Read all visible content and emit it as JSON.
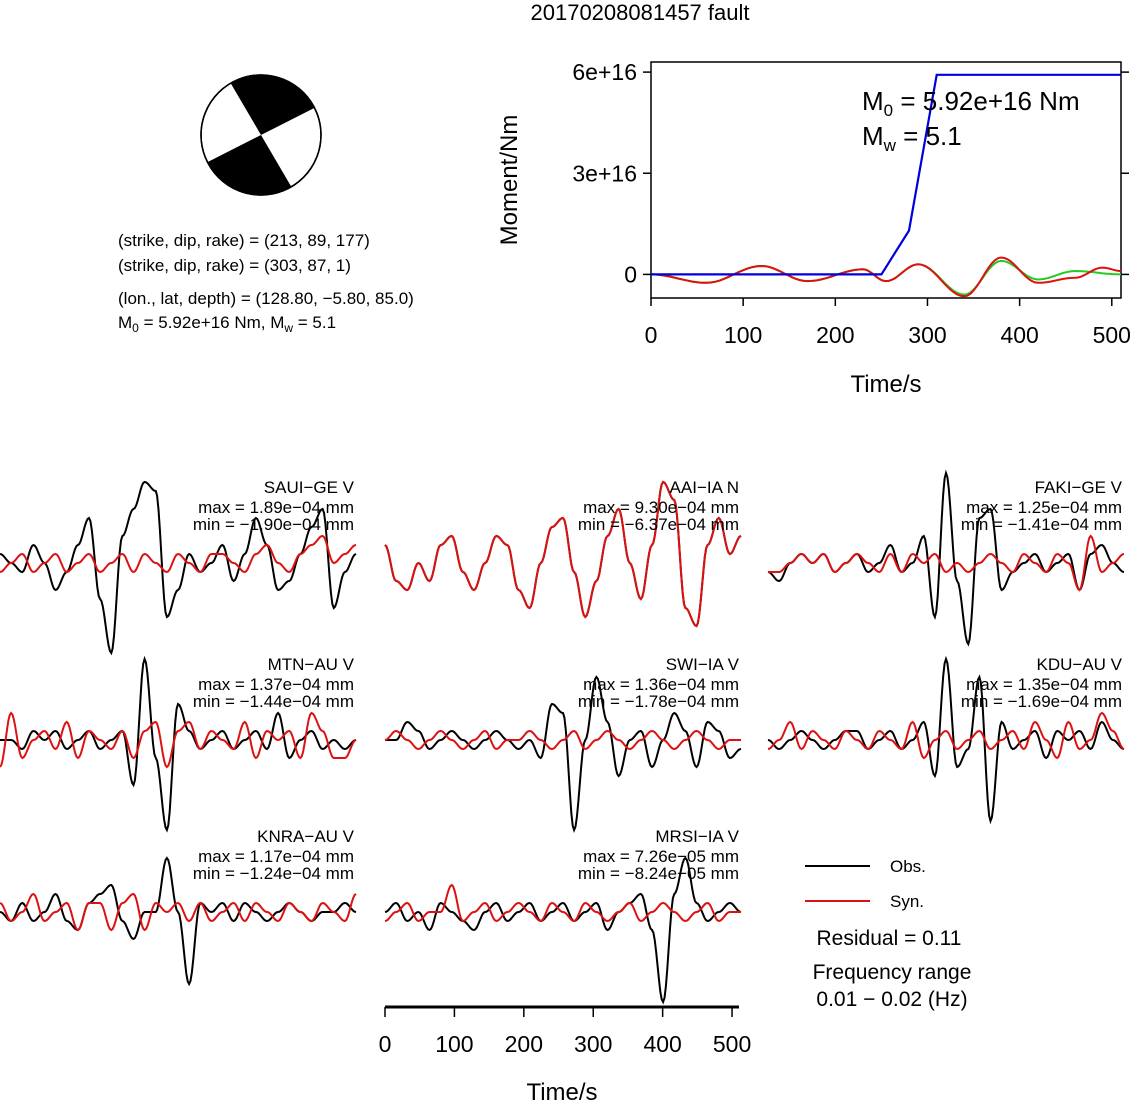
{
  "page": {
    "title": "20170208081457 fault",
    "strike_line_1": "(strike, dip, rake) = (213, 89, 177)",
    "strike_line_2": "(strike, dip, rake) = (303, 87, 1)",
    "location_line": "(lon., lat, depth) = (128.80, −5.80, 85.0)",
    "moment_line_m0": "M",
    "moment_line_m0_sub": "0",
    "moment_line_m0_rest": " = 5.92e+16 Nm, M",
    "moment_line_mw_sub": "w",
    "moment_line_mw_rest": " = 5.1"
  },
  "colors": {
    "observed": "#000000",
    "synthetic": "#dd1111",
    "moment": "#0000dd",
    "moment_obs": "#22cc22",
    "beachball_fill": "#000000"
  },
  "legend": {
    "obs_label": "Obs.",
    "syn_label": "Syn.",
    "residual": "Residual = 0.11",
    "freq_title": "Frequency range",
    "freq_value": "0.01 − 0.02 (Hz)"
  },
  "chart_data": [
    {
      "type": "line",
      "title": "",
      "xlabel": "Time/s",
      "ylabel": "Moment/Nm",
      "xlim": [
        0,
        510
      ],
      "ylim": [
        -7000000000000000.0,
        6.3e+16
      ],
      "x_ticks": [
        0,
        100,
        200,
        300,
        400,
        500
      ],
      "y_ticks": [
        0,
        3e+16,
        6e+16
      ],
      "y_tick_labels": [
        "0",
        "3e+16",
        "6e+16"
      ],
      "annotation_m0": "M",
      "annotation_m0_sub": "0",
      "annotation_m0_rest": " = 5.92e+16 Nm",
      "annotation_mw": "M",
      "annotation_mw_sub": "w",
      "annotation_mw_rest": " = 5.1",
      "moment_function": {
        "x": [
          0,
          250,
          280,
          310,
          510
        ],
        "y": [
          0,
          0,
          1.3e+16,
          5.92e+16,
          5.92e+16
        ]
      },
      "waveform_green": {
        "x": [
          0,
          60,
          120,
          170,
          230,
          255,
          290,
          340,
          380,
          420,
          460,
          510
        ],
        "y": [
          0,
          -2500000000000000.0,
          2500000000000000.0,
          -2000000000000000.0,
          1500000000000000.0,
          -2000000000000000.0,
          3000000000000000.0,
          -6000000000000000.0,
          4000000000000000.0,
          -1500000000000000.0,
          1000000000000000.0,
          0
        ]
      },
      "waveform_red": {
        "x": [
          0,
          60,
          120,
          170,
          230,
          255,
          290,
          340,
          380,
          420,
          460,
          490,
          510
        ],
        "y": [
          0,
          -2500000000000000.0,
          2500000000000000.0,
          -2000000000000000.0,
          1500000000000000.0,
          -2000000000000000.0,
          3000000000000000.0,
          -6500000000000000.0,
          5000000000000000.0,
          -2500000000000000.0,
          -1000000000000000.0,
          2000000000000000.0,
          1000000000000000.0
        ]
      }
    },
    {
      "type": "line",
      "title": "",
      "xlabel": "Time/s",
      "xlim": [
        0,
        510
      ],
      "x_ticks": [
        0,
        100,
        200,
        300,
        400,
        500
      ],
      "stations": [
        {
          "name": "SAUI−GE V",
          "max": "max = 1.89e−04 mm",
          "min": "min = −1.90e−04 mm",
          "col": 0,
          "row": 0,
          "obs": [
            0.1,
            0.0,
            -0.1,
            0.2,
            0.0,
            -0.3,
            -0.1,
            0.2,
            0.5,
            -0.4,
            -1.0,
            0.3,
            0.6,
            0.9,
            0.8,
            -0.6,
            -0.3,
            0.1,
            -0.1,
            0.0,
            0.2,
            -0.2,
            0.1,
            0.5,
            0.2,
            -0.3,
            -0.2,
            0.1,
            0.4,
            0.6,
            -0.5,
            -0.1,
            0.1
          ],
          "syn": [
            -0.1,
            0.0,
            0.1,
            -0.1,
            0.0,
            0.1,
            -0.1,
            0.0,
            0.1,
            -0.1,
            0.0,
            0.1,
            -0.1,
            0.1,
            0.0,
            -0.1,
            0.1,
            0.0,
            -0.1,
            0.1,
            0.1,
            0.0,
            -0.1,
            0.1,
            0.2,
            0.0,
            -0.1,
            0.1,
            0.2,
            0.3,
            0.0,
            0.1,
            0.2
          ]
        },
        {
          "name": "AAI−IA N",
          "max": "max = 9.30e−04 mm",
          "min": "min = −6.37e−04 mm",
          "col": 1,
          "row": 0,
          "obs": [
            0.2,
            -0.2,
            -0.3,
            0.0,
            -0.2,
            0.2,
            0.3,
            -0.1,
            -0.3,
            0.0,
            0.3,
            0.2,
            -0.3,
            -0.5,
            0.0,
            0.4,
            0.5,
            -0.1,
            -0.6,
            -0.2,
            0.3,
            0.6,
            0.0,
            -0.4,
            0.2,
            0.9,
            0.7,
            -0.5,
            -0.7,
            0.2,
            0.5,
            0.1,
            0.3
          ],
          "syn": [
            0.2,
            -0.2,
            -0.3,
            0.0,
            -0.2,
            0.2,
            0.3,
            -0.1,
            -0.3,
            0.0,
            0.3,
            0.2,
            -0.3,
            -0.5,
            0.0,
            0.4,
            0.5,
            -0.1,
            -0.6,
            -0.2,
            0.3,
            0.6,
            0.0,
            -0.4,
            0.2,
            0.9,
            0.7,
            -0.5,
            -0.7,
            0.2,
            0.5,
            0.1,
            0.3
          ]
        },
        {
          "name": "FAKI−GE V",
          "max": "max = 1.25e−04 mm",
          "min": "min = −1.41e−04 mm",
          "col": 2,
          "row": 0,
          "obs": [
            -0.1,
            -0.2,
            0.0,
            0.1,
            0.0,
            0.1,
            -0.1,
            0.0,
            0.1,
            -0.1,
            0.0,
            0.2,
            -0.1,
            0.0,
            0.3,
            -0.6,
            1.0,
            -0.2,
            -0.9,
            0.5,
            0.6,
            -0.3,
            -0.1,
            0.0,
            0.1,
            -0.1,
            0.0,
            0.1,
            -0.3,
            0.1,
            0.2,
            0.0,
            -0.1
          ],
          "syn": [
            -0.1,
            -0.1,
            0.0,
            0.1,
            0.0,
            0.1,
            -0.1,
            0.0,
            0.1,
            0.0,
            -0.1,
            0.1,
            -0.1,
            0.1,
            0.0,
            0.1,
            -0.1,
            0.0,
            -0.1,
            0.0,
            0.1,
            0.0,
            -0.1,
            0.1,
            0.0,
            -0.1,
            0.1,
            0.0,
            -0.3,
            0.3,
            -0.1,
            0.0,
            0.1
          ]
        },
        {
          "name": "MTN−AU V",
          "max": "max = 1.37e−04 mm",
          "min": "min = −1.44e−04 mm",
          "col": 0,
          "row": 1,
          "obs": [
            0.0,
            0.0,
            -0.1,
            0.1,
            0.0,
            0.1,
            -0.1,
            0.0,
            0.1,
            -0.1,
            0.0,
            0.1,
            -0.5,
            0.9,
            -0.2,
            -1.0,
            0.4,
            0.1,
            -0.1,
            0.0,
            0.1,
            -0.1,
            0.0,
            0.1,
            -0.1,
            0.3,
            -0.2,
            0.0,
            0.1,
            -0.1,
            0.0,
            -0.1,
            0.0
          ],
          "syn": [
            -0.3,
            0.3,
            -0.2,
            0.0,
            0.1,
            -0.1,
            0.2,
            -0.2,
            0.1,
            0.0,
            -0.1,
            0.1,
            -0.2,
            0.1,
            0.2,
            -0.3,
            0.1,
            0.2,
            -0.1,
            0.1,
            0.0,
            -0.1,
            0.2,
            -0.2,
            0.1,
            0.0,
            0.1,
            -0.2,
            0.3,
            0.1,
            -0.2,
            -0.2,
            0.0
          ],
          "max_line_y_offset": 0
        },
        {
          "name": "SWI−IA V",
          "max": "max = 1.36e−04 mm",
          "min": "min = −1.78e−04 mm",
          "col": 1,
          "row": 1,
          "obs": [
            0.0,
            0.0,
            0.2,
            0.1,
            -0.1,
            0.0,
            0.1,
            0.0,
            -0.1,
            0.0,
            0.1,
            0.0,
            -0.1,
            0.0,
            -0.2,
            0.4,
            0.3,
            -1.0,
            0.0,
            0.7,
            0.2,
            -0.4,
            0.0,
            0.1,
            -0.3,
            0.0,
            0.3,
            0.1,
            -0.3,
            0.2,
            0.1,
            -0.2,
            -0.1
          ],
          "syn": [
            0.0,
            0.1,
            0.0,
            -0.1,
            0.0,
            0.1,
            0.0,
            -0.1,
            0.0,
            0.1,
            -0.1,
            0.0,
            0.0,
            0.1,
            0.0,
            -0.1,
            0.0,
            0.1,
            -0.1,
            0.0,
            0.1,
            0.0,
            -0.1,
            0.0,
            0.1,
            0.0,
            -0.1,
            0.0,
            0.1,
            0.0,
            -0.1,
            0.0,
            0.0
          ]
        },
        {
          "name": "KDU−AU V",
          "max": "max = 1.35e−04 mm",
          "min": "min = −1.69e−04 mm",
          "col": 2,
          "row": 1,
          "obs": [
            0.0,
            -0.1,
            0.0,
            0.1,
            0.0,
            -0.1,
            0.0,
            0.1,
            0.1,
            -0.1,
            0.0,
            0.1,
            -0.1,
            0.0,
            0.2,
            -0.4,
            0.9,
            -0.3,
            -0.1,
            0.7,
            -0.9,
            0.2,
            -0.1,
            0.0,
            0.1,
            -0.2,
            0.1,
            0.0,
            0.1,
            -0.1,
            0.2,
            0.0,
            -0.1
          ],
          "syn": [
            -0.1,
            0.0,
            0.2,
            -0.1,
            0.1,
            0.0,
            -0.1,
            0.1,
            0.0,
            -0.1,
            0.1,
            0.0,
            -0.1,
            0.2,
            -0.2,
            0.0,
            0.1,
            -0.1,
            0.0,
            0.1,
            -0.1,
            0.0,
            0.1,
            -0.1,
            0.2,
            0.0,
            -0.2,
            0.2,
            -0.1,
            0.0,
            0.3,
            0.1,
            -0.1
          ]
        },
        {
          "name": "KNRA−AU V",
          "max": "max = 1.17e−04 mm",
          "min": "min = −1.24e−04 mm",
          "col": 0,
          "row": 2,
          "obs": [
            0.0,
            -0.1,
            0.1,
            -0.1,
            0.0,
            0.2,
            -0.1,
            -0.2,
            0.1,
            0.2,
            0.3,
            -0.1,
            -0.3,
            0.0,
            0.0,
            0.6,
            0.0,
            -0.8,
            0.1,
            0.0,
            0.1,
            -0.1,
            0.1,
            0.0,
            -0.1,
            0.0,
            0.1,
            0.0,
            -0.1,
            0.0,
            0.0,
            0.1,
            0.0
          ],
          "syn": [
            0.1,
            -0.1,
            0.0,
            0.2,
            -0.1,
            0.0,
            0.1,
            -0.2,
            0.1,
            0.1,
            -0.2,
            0.1,
            0.2,
            -0.2,
            0.1,
            0.0,
            0.1,
            -0.1,
            0.1,
            -0.1,
            0.0,
            0.1,
            -0.1,
            0.1,
            0.0,
            -0.1,
            0.1,
            0.0,
            -0.1,
            0.1,
            0.0,
            -0.1,
            0.2
          ]
        },
        {
          "name": "MRSI−IA V",
          "max": "max = 7.26e−05 mm",
          "min": "min = −8.24e−05 mm",
          "col": 1,
          "row": 2,
          "obs": [
            0.0,
            0.1,
            -0.1,
            0.0,
            -0.2,
            0.1,
            0.0,
            -0.1,
            -0.2,
            0.0,
            0.1,
            -0.1,
            0.0,
            0.1,
            -0.1,
            0.0,
            0.1,
            -0.1,
            0.0,
            0.1,
            -0.2,
            0.0,
            0.1,
            0.2,
            -0.2,
            -1.0,
            0.2,
            0.6,
            0.1,
            -0.1,
            0.0,
            0.1,
            0.0
          ],
          "syn": [
            -0.1,
            0.0,
            0.1,
            -0.1,
            0.0,
            0.0,
            0.3,
            -0.1,
            0.0,
            0.1,
            -0.1,
            0.0,
            0.1,
            0.0,
            -0.1,
            0.1,
            0.0,
            -0.1,
            0.1,
            0.0,
            -0.1,
            0.0,
            0.1,
            -0.1,
            0.0,
            0.1,
            0.0,
            -0.1,
            0.0,
            0.1,
            -0.1,
            0.0,
            0.0
          ]
        }
      ]
    }
  ]
}
